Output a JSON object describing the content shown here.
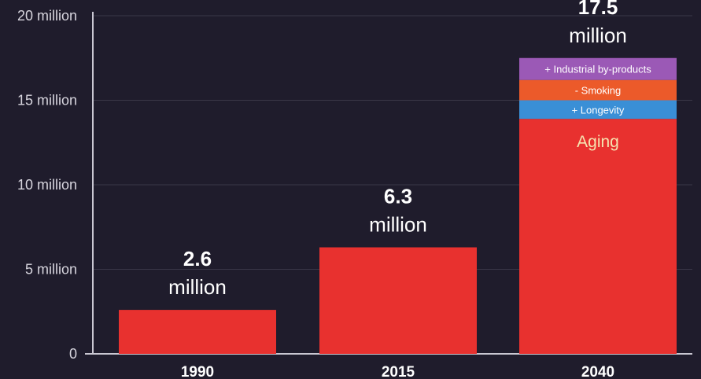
{
  "chart_data": {
    "type": "bar",
    "title": "",
    "xlabel": "",
    "ylabel": "",
    "ylim": [
      0,
      20
    ],
    "yticks": [
      {
        "value": 0,
        "label": "0"
      },
      {
        "value": 5,
        "label": "5 million"
      },
      {
        "value": 10,
        "label": "10 million"
      },
      {
        "value": 15,
        "label": "15 million"
      },
      {
        "value": 20,
        "label": "20 million"
      }
    ],
    "categories": [
      "1990",
      "2015",
      "2040"
    ],
    "values": [
      2.6,
      6.3,
      17.5
    ],
    "value_labels": [
      {
        "number": "2.6",
        "unit": "million"
      },
      {
        "number": "6.3",
        "unit": "million"
      },
      {
        "number": "17.5",
        "unit": "million"
      }
    ],
    "stack_2040": [
      {
        "name": "Aging",
        "value": 13.9,
        "color": "#e8312f"
      },
      {
        "name": "+ Longevity",
        "value": 1.1,
        "color": "#3a8fd6"
      },
      {
        "name": "- Smoking",
        "value": 1.2,
        "color": "#ec5a2a"
      },
      {
        "name": "+ Industrial by-products",
        "value": 1.3,
        "color": "#9b59b6"
      }
    ],
    "colors": {
      "bar": "#e8312f",
      "background": "#1f1c2c",
      "grid": "#3a3748",
      "axis": "#c9c7d2"
    }
  }
}
